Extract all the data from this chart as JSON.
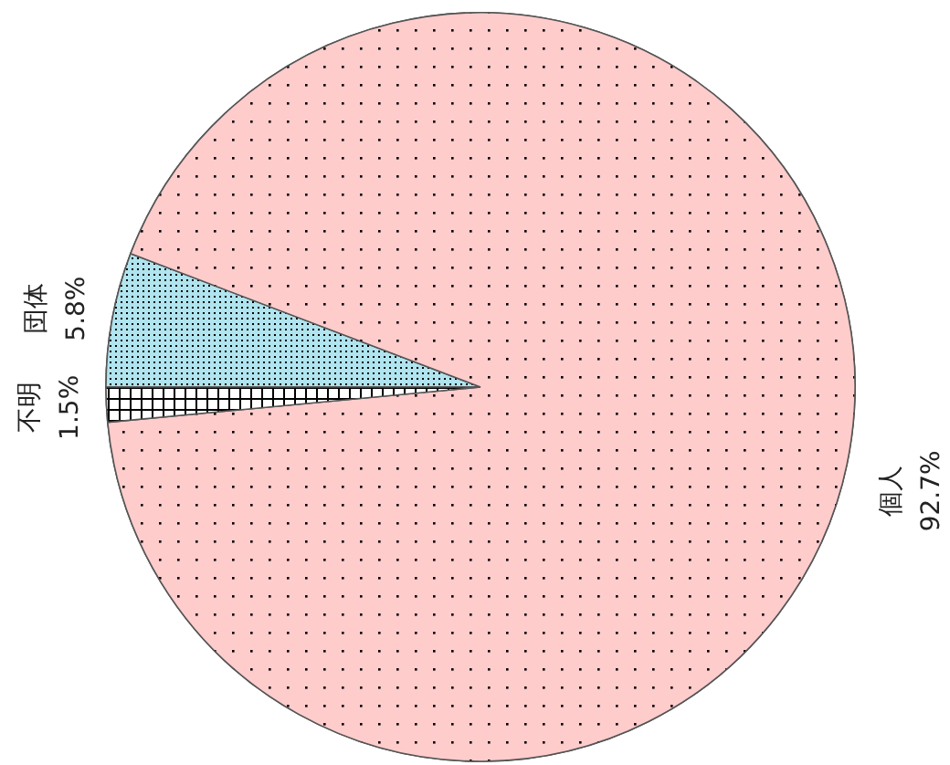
{
  "chart_data": {
    "type": "pie",
    "categories": [
      "団体",
      "個人",
      "不明"
    ],
    "values": [
      5.8,
      92.7,
      1.5
    ],
    "colors": [
      "#b0e4ee",
      "#ffcccc",
      "#ffffff"
    ],
    "value_labels": [
      "5.8%",
      "92.7%",
      "1.5%"
    ]
  }
}
